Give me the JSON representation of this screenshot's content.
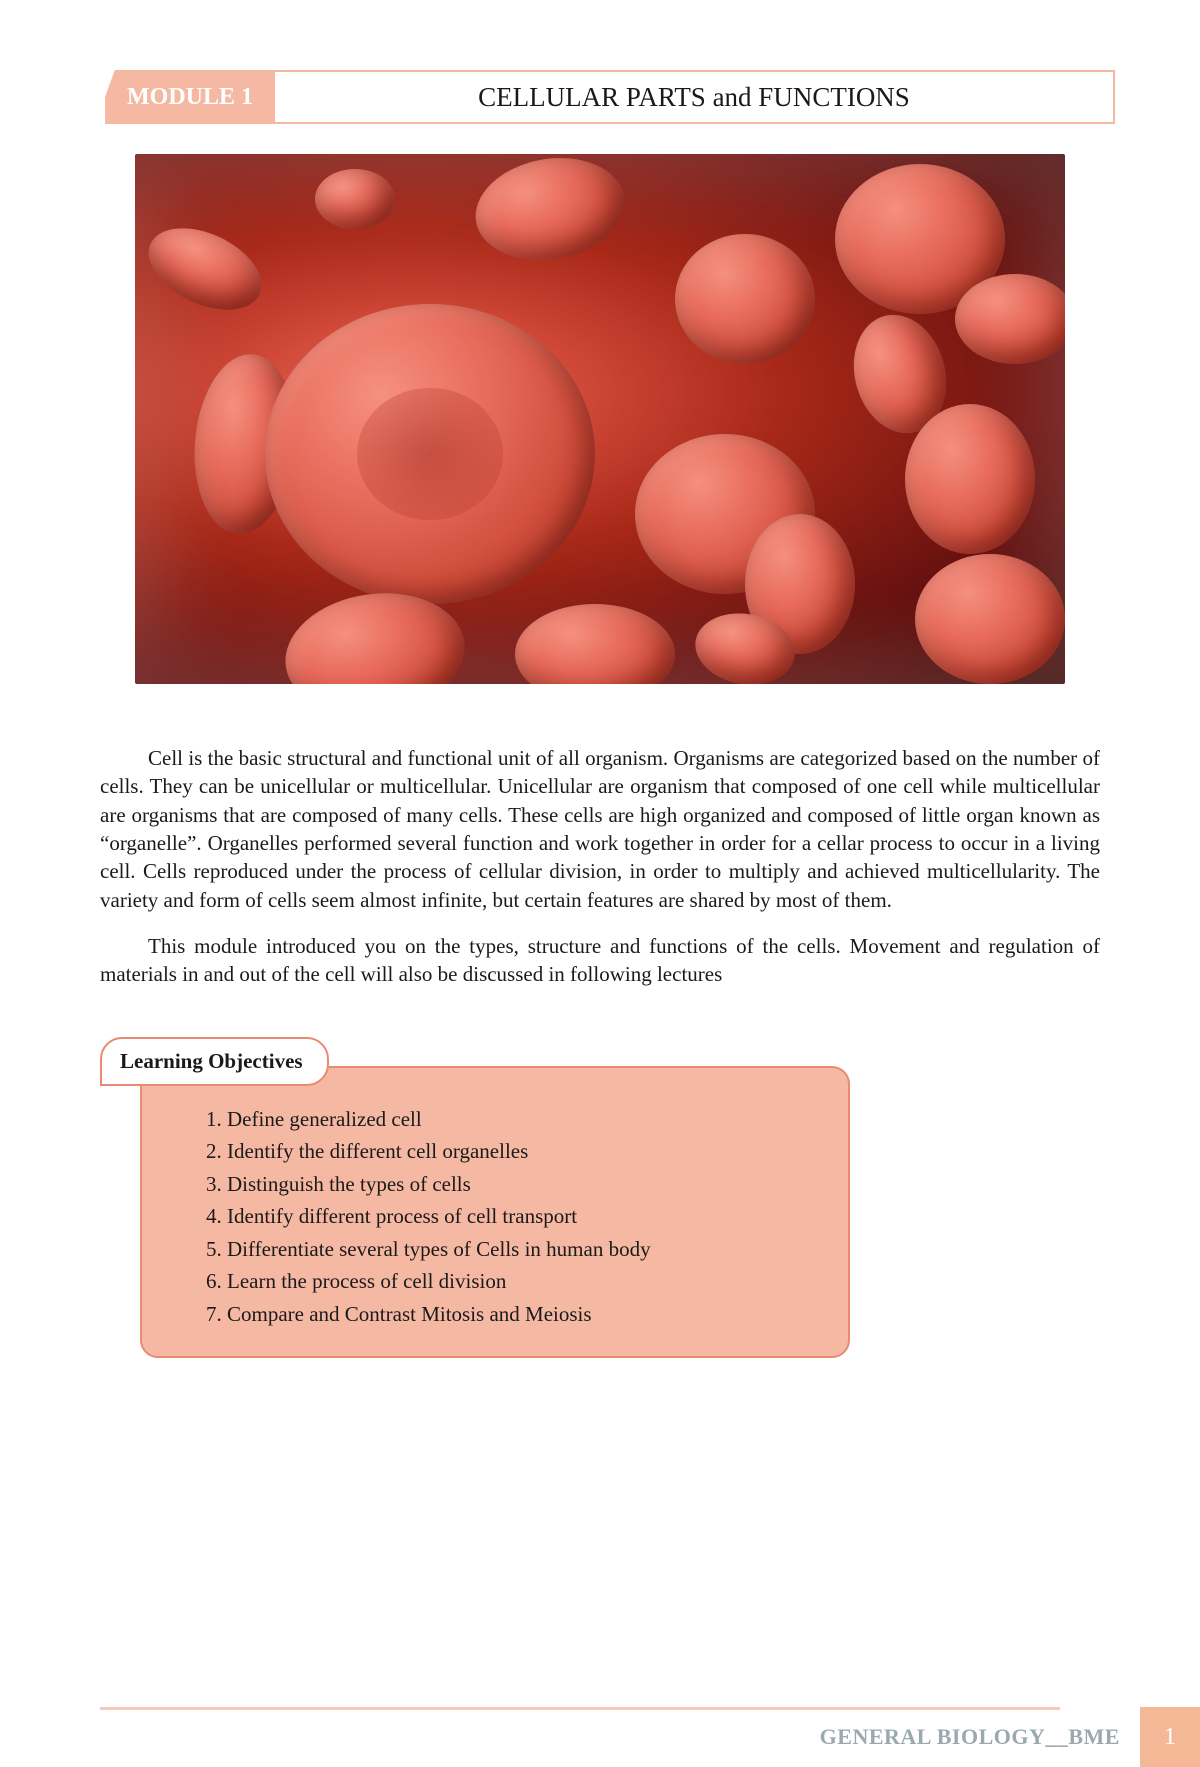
{
  "header": {
    "module_label": "MODULE 1",
    "title": "CELLULAR PARTS and FUNCTIONS"
  },
  "body": {
    "paragraph_1": "Cell is the basic structural and functional unit of all organism. Organisms are categorized based on the number of cells. They can be unicellular or multicellular. Unicellular are organism that composed of one cell while multicellular are organisms that are composed of many cells. These cells are high organized and composed of little organ known as “organelle”. Organelles performed several function and work together in order for a cellar process to occur in a living cell. Cells reproduced under the process of cellular division, in order to multiply and achieved multicellularity. The variety and form of cells seem almost infinite, but certain features are shared by most of them.",
    "paragraph_2": "This module introduced you on the types, structure and functions of the cells. Movement and regulation of materials in and out of the cell will also be discussed in following lectures"
  },
  "objectives": {
    "label": "Learning Objectives",
    "items": [
      "Define generalized cell",
      "Identify the different cell organelles",
      "Distinguish the types of cells",
      "Identify different process of cell transport",
      "Differentiate several types of Cells in human body",
      "Learn the process of cell division",
      "Compare and Contrast Mitosis and Meiosis"
    ]
  },
  "footer": {
    "course": "GENERAL BIOLOGY__BME",
    "page": "1"
  },
  "styles": {
    "accent_color": "#f5b8a3",
    "border_color": "#e88b72",
    "footer_text_color": "#9aa8b0",
    "page_num_bg": "#f5b896",
    "image_description": "red-blood-cells-3d-render"
  }
}
